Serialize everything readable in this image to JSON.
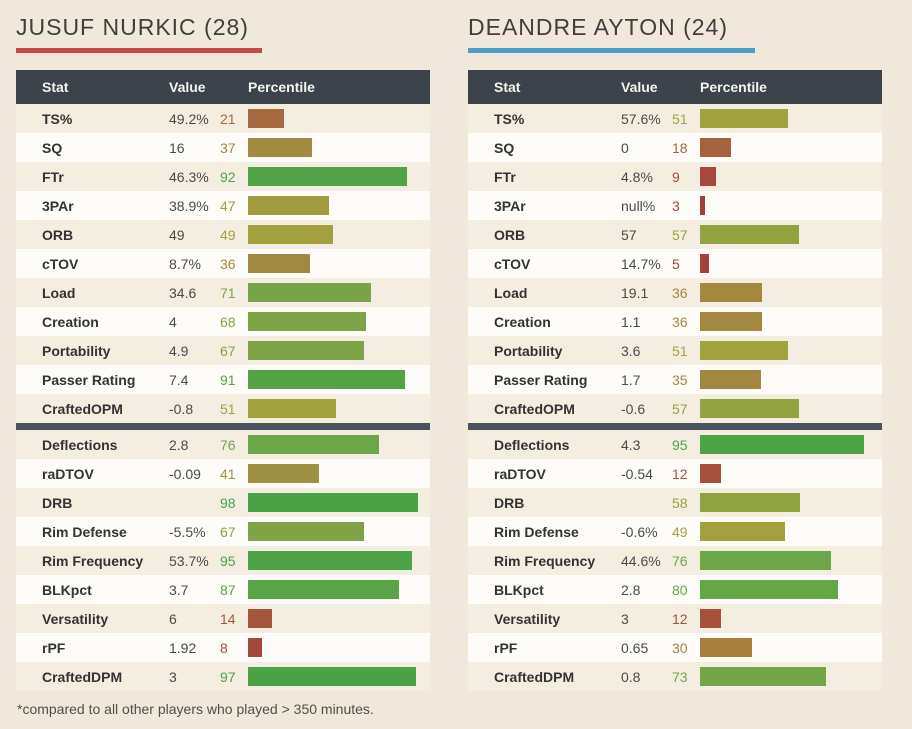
{
  "colors": {
    "page_bg": "#efe8db",
    "card_header_bg": "#3d434b",
    "header_text": "#f5f3ee",
    "row_odd_bg": "#f4eee1",
    "row_even_bg": "#fdfcf8",
    "divider": "#4a545e",
    "title_text": "#3f3f3f",
    "stat_text": "#333333",
    "value_text": "#4a4a4a",
    "footnote_text": "#4f4f4f",
    "percentile_ramp": [
      [
        0,
        "#993a37"
      ],
      [
        10,
        "#a84b3d"
      ],
      [
        20,
        "#a5673f"
      ],
      [
        30,
        "#a8803c"
      ],
      [
        40,
        "#a08e42"
      ],
      [
        50,
        "#a2a33e"
      ],
      [
        60,
        "#8ba23f"
      ],
      [
        70,
        "#7ca44a"
      ],
      [
        80,
        "#63a747"
      ],
      [
        90,
        "#53a345"
      ],
      [
        100,
        "#47a245"
      ]
    ]
  },
  "footnote": "*compared to all other players who played > 350 minutes.",
  "chart_data": [
    {
      "type": "table",
      "title": "JUSUF NURKIC (28)",
      "accent_color": "#c94a45",
      "underline_width": 246,
      "columns": [
        "Stat",
        "Value",
        "Percentile"
      ],
      "percentile_scale": [
        0,
        100
      ],
      "sections": [
        {
          "rows": [
            {
              "stat": "TS%",
              "value": "49.2%",
              "percentile": 21
            },
            {
              "stat": "SQ",
              "value": "16",
              "percentile": 37
            },
            {
              "stat": "FTr",
              "value": "46.3%",
              "percentile": 92
            },
            {
              "stat": "3PAr",
              "value": "38.9%",
              "percentile": 47
            },
            {
              "stat": "ORB",
              "value": "49",
              "percentile": 49
            },
            {
              "stat": "cTOV",
              "value": "8.7%",
              "percentile": 36
            },
            {
              "stat": "Load",
              "value": "34.6",
              "percentile": 71
            },
            {
              "stat": "Creation",
              "value": "4",
              "percentile": 68
            },
            {
              "stat": "Portability",
              "value": "4.9",
              "percentile": 67
            },
            {
              "stat": "Passer Rating",
              "value": "7.4",
              "percentile": 91
            },
            {
              "stat": "CraftedOPM",
              "value": "-0.8",
              "percentile": 51
            }
          ]
        },
        {
          "rows": [
            {
              "stat": "Deflections",
              "value": "2.8",
              "percentile": 76
            },
            {
              "stat": "raDTOV",
              "value": "-0.09",
              "percentile": 41
            },
            {
              "stat": "DRB",
              "value": "",
              "percentile": 98
            },
            {
              "stat": "Rim Defense",
              "value": "-5.5%",
              "percentile": 67
            },
            {
              "stat": "Rim Frequency",
              "value": "53.7%",
              "percentile": 95
            },
            {
              "stat": "BLKpct",
              "value": "3.7",
              "percentile": 87
            },
            {
              "stat": "Versatility",
              "value": "6",
              "percentile": 14
            },
            {
              "stat": "rPF",
              "value": "1.92",
              "percentile": 8
            },
            {
              "stat": "CraftedDPM",
              "value": "3",
              "percentile": 97
            }
          ]
        }
      ]
    },
    {
      "type": "table",
      "title": "DEANDRE AYTON (24)",
      "accent_color": "#4d9fc7",
      "underline_width": 287,
      "columns": [
        "Stat",
        "Value",
        "Percentile"
      ],
      "percentile_scale": [
        0,
        100
      ],
      "sections": [
        {
          "rows": [
            {
              "stat": "TS%",
              "value": "57.6%",
              "percentile": 51
            },
            {
              "stat": "SQ",
              "value": "0",
              "percentile": 18
            },
            {
              "stat": "FTr",
              "value": "4.8%",
              "percentile": 9
            },
            {
              "stat": "3PAr",
              "value": "null%",
              "percentile": 3
            },
            {
              "stat": "ORB",
              "value": "57",
              "percentile": 57
            },
            {
              "stat": "cTOV",
              "value": "14.7%",
              "percentile": 5
            },
            {
              "stat": "Load",
              "value": "19.1",
              "percentile": 36
            },
            {
              "stat": "Creation",
              "value": "1.1",
              "percentile": 36
            },
            {
              "stat": "Portability",
              "value": "3.6",
              "percentile": 51
            },
            {
              "stat": "Passer Rating",
              "value": "1.7",
              "percentile": 35
            },
            {
              "stat": "CraftedOPM",
              "value": "-0.6",
              "percentile": 57
            }
          ]
        },
        {
          "rows": [
            {
              "stat": "Deflections",
              "value": "4.3",
              "percentile": 95
            },
            {
              "stat": "raDTOV",
              "value": "-0.54",
              "percentile": 12
            },
            {
              "stat": "DRB",
              "value": "",
              "percentile": 58
            },
            {
              "stat": "Rim Defense",
              "value": "-0.6%",
              "percentile": 49
            },
            {
              "stat": "Rim Frequency",
              "value": "44.6%",
              "percentile": 76
            },
            {
              "stat": "BLKpct",
              "value": "2.8",
              "percentile": 80
            },
            {
              "stat": "Versatility",
              "value": "3",
              "percentile": 12
            },
            {
              "stat": "rPF",
              "value": "0.65",
              "percentile": 30
            },
            {
              "stat": "CraftedDPM",
              "value": "0.8",
              "percentile": 73
            }
          ]
        }
      ]
    }
  ]
}
